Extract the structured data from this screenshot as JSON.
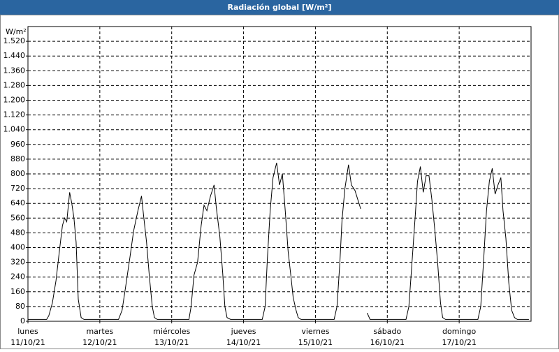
{
  "chart_data": {
    "type": "line",
    "title": "Radiación global [W/m²]",
    "y_label": "W/m²",
    "x": [
      0,
      0.26,
      0.29,
      0.34,
      0.39,
      0.44,
      0.48,
      0.51,
      0.54,
      0.58,
      0.61,
      0.64,
      0.67,
      0.7,
      0.74,
      0.78,
      1.26,
      1.31,
      1.36,
      1.42,
      1.47,
      1.53,
      1.58,
      1.61,
      1.65,
      1.69,
      1.73,
      1.76,
      1.8,
      2.24,
      2.27,
      2.31,
      2.36,
      2.41,
      2.45,
      2.49,
      2.54,
      2.59,
      2.62,
      2.67,
      2.71,
      2.74,
      2.77,
      2.82,
      3.26,
      3.3,
      3.33,
      3.37,
      3.41,
      3.46,
      3.5,
      3.54,
      3.58,
      3.62,
      3.66,
      3.69,
      3.73,
      3.76,
      3.8,
      4.26,
      4.3,
      4.34,
      4.37,
      4.41,
      4.46,
      4.5,
      4.55,
      4.59,
      4.63,
      4.67,
      4.72,
      4.76,
      5.26,
      5.3,
      5.34,
      5.39,
      5.42,
      5.46,
      5.5,
      5.54,
      5.58,
      5.62,
      5.66,
      5.7,
      5.74,
      5.77,
      5.81,
      6.26,
      6.3,
      6.34,
      6.38,
      6.42,
      6.46,
      6.5,
      6.54,
      6.58,
      6.61,
      6.65,
      6.69,
      6.73,
      6.77,
      6.81,
      6.97
    ],
    "series": [
      {
        "name": "Radiación global",
        "color": "#000000",
        "values": [
          10,
          10,
          30,
          100,
          220,
          390,
          520,
          560,
          540,
          700,
          640,
          560,
          430,
          120,
          20,
          10,
          10,
          60,
          190,
          350,
          490,
          600,
          680,
          570,
          430,
          240,
          80,
          20,
          10,
          10,
          80,
          250,
          320,
          520,
          630,
          600,
          680,
          740,
          620,
          460,
          260,
          80,
          20,
          10,
          10,
          80,
          330,
          600,
          780,
          860,
          740,
          800,
          600,
          380,
          240,
          130,
          60,
          20,
          10,
          10,
          80,
          320,
          550,
          720,
          850,
          740,
          710,
          660,
          610,
          null,
          45,
          10,
          10,
          80,
          300,
          580,
          760,
          840,
          700,
          790,
          790,
          660,
          500,
          320,
          100,
          20,
          10,
          10,
          80,
          330,
          600,
          760,
          830,
          690,
          740,
          780,
          600,
          450,
          210,
          60,
          20,
          10,
          10
        ]
      }
    ],
    "xlim": [
      0,
      7
    ],
    "xticks": [
      {
        "value": 0,
        "label": "lunes",
        "sublabel": "11/10/21"
      },
      {
        "value": 1,
        "label": "martes",
        "sublabel": "12/10/21"
      },
      {
        "value": 2,
        "label": "miércoles",
        "sublabel": "13/10/21"
      },
      {
        "value": 3,
        "label": "jueves",
        "sublabel": "14/10/21"
      },
      {
        "value": 4,
        "label": "viernes",
        "sublabel": "15/10/21"
      },
      {
        "value": 5,
        "label": "sábado",
        "sublabel": "16/10/21"
      },
      {
        "value": 6,
        "label": "domingo",
        "sublabel": "17/10/21"
      }
    ],
    "ylim": [
      0,
      1600
    ],
    "yticks": [
      0,
      80,
      160,
      240,
      320,
      400,
      480,
      560,
      640,
      720,
      800,
      880,
      960,
      {
        "value": 1040,
        "label": "1.040"
      },
      {
        "value": 1120,
        "label": "1.120"
      },
      {
        "value": 1200,
        "label": "1.200"
      },
      {
        "value": 1280,
        "label": "1.280"
      },
      {
        "value": 1360,
        "label": "1.360"
      },
      {
        "value": 1440,
        "label": "1.440"
      },
      {
        "value": 1520,
        "label": "1.520"
      }
    ],
    "grid": true
  }
}
